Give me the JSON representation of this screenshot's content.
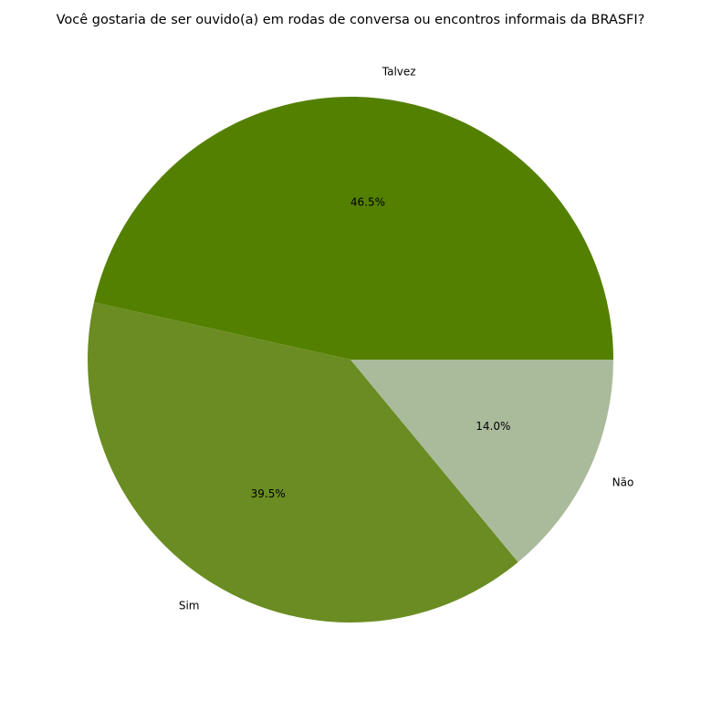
{
  "chart_data": {
    "type": "pie",
    "title": "Você gostaria de ser ouvido(a) em rodas de conversa ou encontros informais da BRASFI?",
    "slices": [
      {
        "label": "Talvez",
        "value": 46.5,
        "pct_label": "46.5%",
        "color": "#548000"
      },
      {
        "label": "Sim",
        "value": 39.5,
        "pct_label": "39.5%",
        "color": "#6a8c22"
      },
      {
        "label": "Não",
        "value": 14.0,
        "pct_label": "14.0%",
        "color": "#aabb9b"
      }
    ],
    "start_angle": 0,
    "direction": "counterclockwise"
  }
}
